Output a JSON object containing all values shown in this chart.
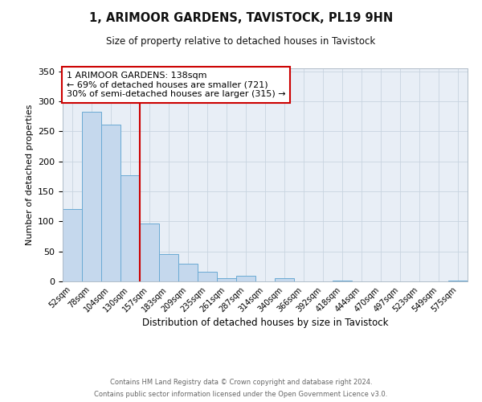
{
  "title": "1, ARIMOOR GARDENS, TAVISTOCK, PL19 9HN",
  "subtitle": "Size of property relative to detached houses in Tavistock",
  "xlabel": "Distribution of detached houses by size in Tavistock",
  "ylabel": "Number of detached properties",
  "bar_labels": [
    "52sqm",
    "78sqm",
    "104sqm",
    "130sqm",
    "157sqm",
    "183sqm",
    "209sqm",
    "235sqm",
    "261sqm",
    "287sqm",
    "314sqm",
    "340sqm",
    "366sqm",
    "392sqm",
    "418sqm",
    "444sqm",
    "470sqm",
    "497sqm",
    "523sqm",
    "549sqm",
    "575sqm"
  ],
  "bar_values": [
    120,
    282,
    261,
    177,
    96,
    45,
    29,
    16,
    5,
    9,
    0,
    5,
    0,
    0,
    2,
    0,
    0,
    0,
    0,
    0,
    2
  ],
  "bar_color": "#c5d8ed",
  "bar_edge_color": "#6aaad4",
  "vline_color": "#cc0000",
  "vline_x_idx": 3,
  "ylim": [
    0,
    355
  ],
  "yticks": [
    0,
    50,
    100,
    150,
    200,
    250,
    300,
    350
  ],
  "annotation_title": "1 ARIMOOR GARDENS: 138sqm",
  "annotation_line1": "← 69% of detached houses are smaller (721)",
  "annotation_line2": "30% of semi-detached houses are larger (315) →",
  "annotation_box_facecolor": "#ffffff",
  "annotation_box_edgecolor": "#cc0000",
  "footer_line1": "Contains HM Land Registry data © Crown copyright and database right 2024.",
  "footer_line2": "Contains public sector information licensed under the Open Government Licence v3.0.",
  "plot_bg": "#e8eef6",
  "fig_bg": "#ffffff",
  "grid_color": "#c8d4e0"
}
